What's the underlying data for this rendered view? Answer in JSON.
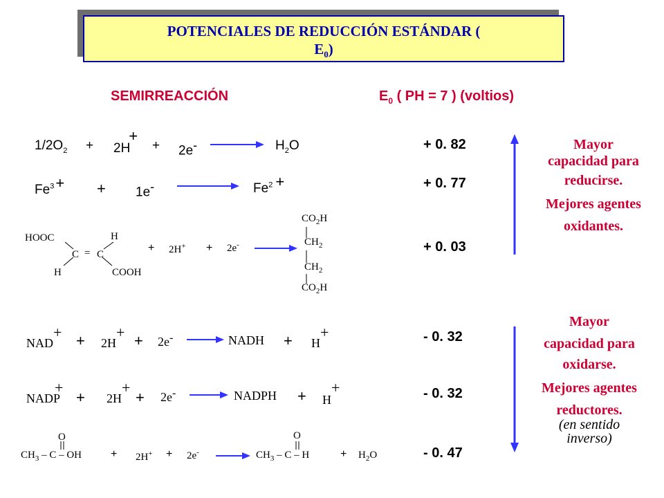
{
  "title": {
    "line1": "POTENCIALES DE  REDUCCIÓN ESTÁNDAR (",
    "line2": "E",
    "line2_sub": "0",
    "line2_close": ")"
  },
  "headers": {
    "semi": "SEMIRREACCIÓN",
    "e0": "E",
    "e0_sub": "0",
    "e0_rest": " ( PH = 7 ) (voltios)"
  },
  "potentials": [
    "+ 0. 82",
    "+ 0. 77",
    "+ 0. 03",
    "- 0. 32",
    "- 0. 32",
    "- 0. 47"
  ],
  "side_top": {
    "line1": "Mayor",
    "line2": "capacidad para",
    "line3": "reducirse.",
    "line4": "Mejores agentes",
    "line5": "oxidantes."
  },
  "side_bottom": {
    "line1": "Mayor",
    "line2": "capacidad para",
    "line3": "oxidarse.",
    "line4": "Mejores agentes",
    "line5": "reductores.",
    "line6": "(en sentido",
    "line7": "inverso)"
  },
  "r1": {
    "o2": "1/2O",
    "o2sub": "2",
    "plus1": "+",
    "h": "2H",
    "hsup": "+",
    "plus2": "+",
    "e": "2e",
    "esup": "-",
    "h2o": "H",
    "h2osub": "2",
    "h2oO": "O"
  },
  "r2": {
    "fe3": "Fe",
    "fe3sup": "3",
    "fe3plus": "+",
    "plus1": "+",
    "e": "1e",
    "esup": "-",
    "fe2": "Fe",
    "fe2sup": "2",
    "fe2plus": "+"
  },
  "r3": {
    "hooc": "HOOC",
    "h1": "H",
    "c1": "C",
    "c2": "C",
    "dbl": "=",
    "h2": "H",
    "cooh": "COOH",
    "plus1": "+",
    "h": "2H",
    "hsup": "+",
    "plus2": "+",
    "e": "2e",
    "esup": "-",
    "co2h": "CO",
    "co2hsub": "2",
    "co2hH": "H",
    "ch2": "CH",
    "ch2sub": "2"
  },
  "r4": {
    "nad": "NAD",
    "nadsup": "+",
    "plus1": "+",
    "h": "2H",
    "hsup": "+",
    "plus2": "+",
    "e": "2e",
    "esup": "-",
    "nadh": "NADH",
    "plus3": "+",
    "hplus": "H",
    "hplussup": "+"
  },
  "r5": {
    "nadp": "NADP",
    "nadpsup": "+",
    "plus1": "+",
    "h": "2H",
    "hsup": "+",
    "plus2": "+",
    "e": "2e",
    "esup": "-",
    "nadph": "NADPH",
    "plus3": "+",
    "hplus": "H",
    "hplussup": "+"
  },
  "r6": {
    "ch3": "CH",
    "ch3sub": "3",
    "dash1": " – C – OH",
    "o": "O",
    "plus1": "+",
    "h": "2H",
    "hsup": "+",
    "plus2": "+",
    "e": "2e",
    "esup": "-",
    "ch3b": "CH",
    "ch3bsub": "3",
    "dash2": " – C – H",
    "plus3": "+",
    "h2o": "H",
    "h2osub": "2",
    "h2oO": "O"
  },
  "colors": {
    "title_bg": "#ffff99",
    "title_border": "#0000aa",
    "title_text": "#0000aa",
    "accent_red": "#cc0033",
    "arrow_blue": "#3333ff",
    "shadow": "#6e6e6e"
  }
}
